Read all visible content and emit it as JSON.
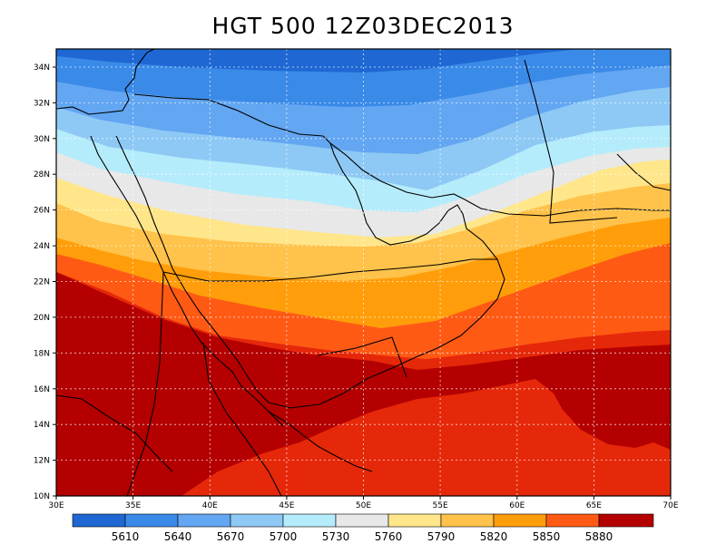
{
  "title": "HGT 500 12Z03DEC2013",
  "map": {
    "lon_range": [
      30,
      70
    ],
    "lat_range": [
      10,
      35
    ],
    "lon_ticks": [
      "30E",
      "35E",
      "40E",
      "45E",
      "50E",
      "55E",
      "60E",
      "65E",
      "70E"
    ],
    "lat_ticks": [
      "10N",
      "12N",
      "14N",
      "16N",
      "18N",
      "20N",
      "22N",
      "24N",
      "26N",
      "28N",
      "30N",
      "32N",
      "34N"
    ],
    "grid": "dotted",
    "field": "500 hPa geopotential height"
  },
  "colorbar": {
    "labels": [
      "5610",
      "5640",
      "5670",
      "5700",
      "5730",
      "5760",
      "5790",
      "5820",
      "5850",
      "5880"
    ],
    "colors": [
      "#1f68d4",
      "#3a8ae8",
      "#63a6f2",
      "#8ec9f5",
      "#b5ecfb",
      "#e8e8e8",
      "#ffe68a",
      "#ffc24a",
      "#ff9e0a",
      "#ff5a14",
      "#e6280a",
      "#b40000"
    ]
  }
}
